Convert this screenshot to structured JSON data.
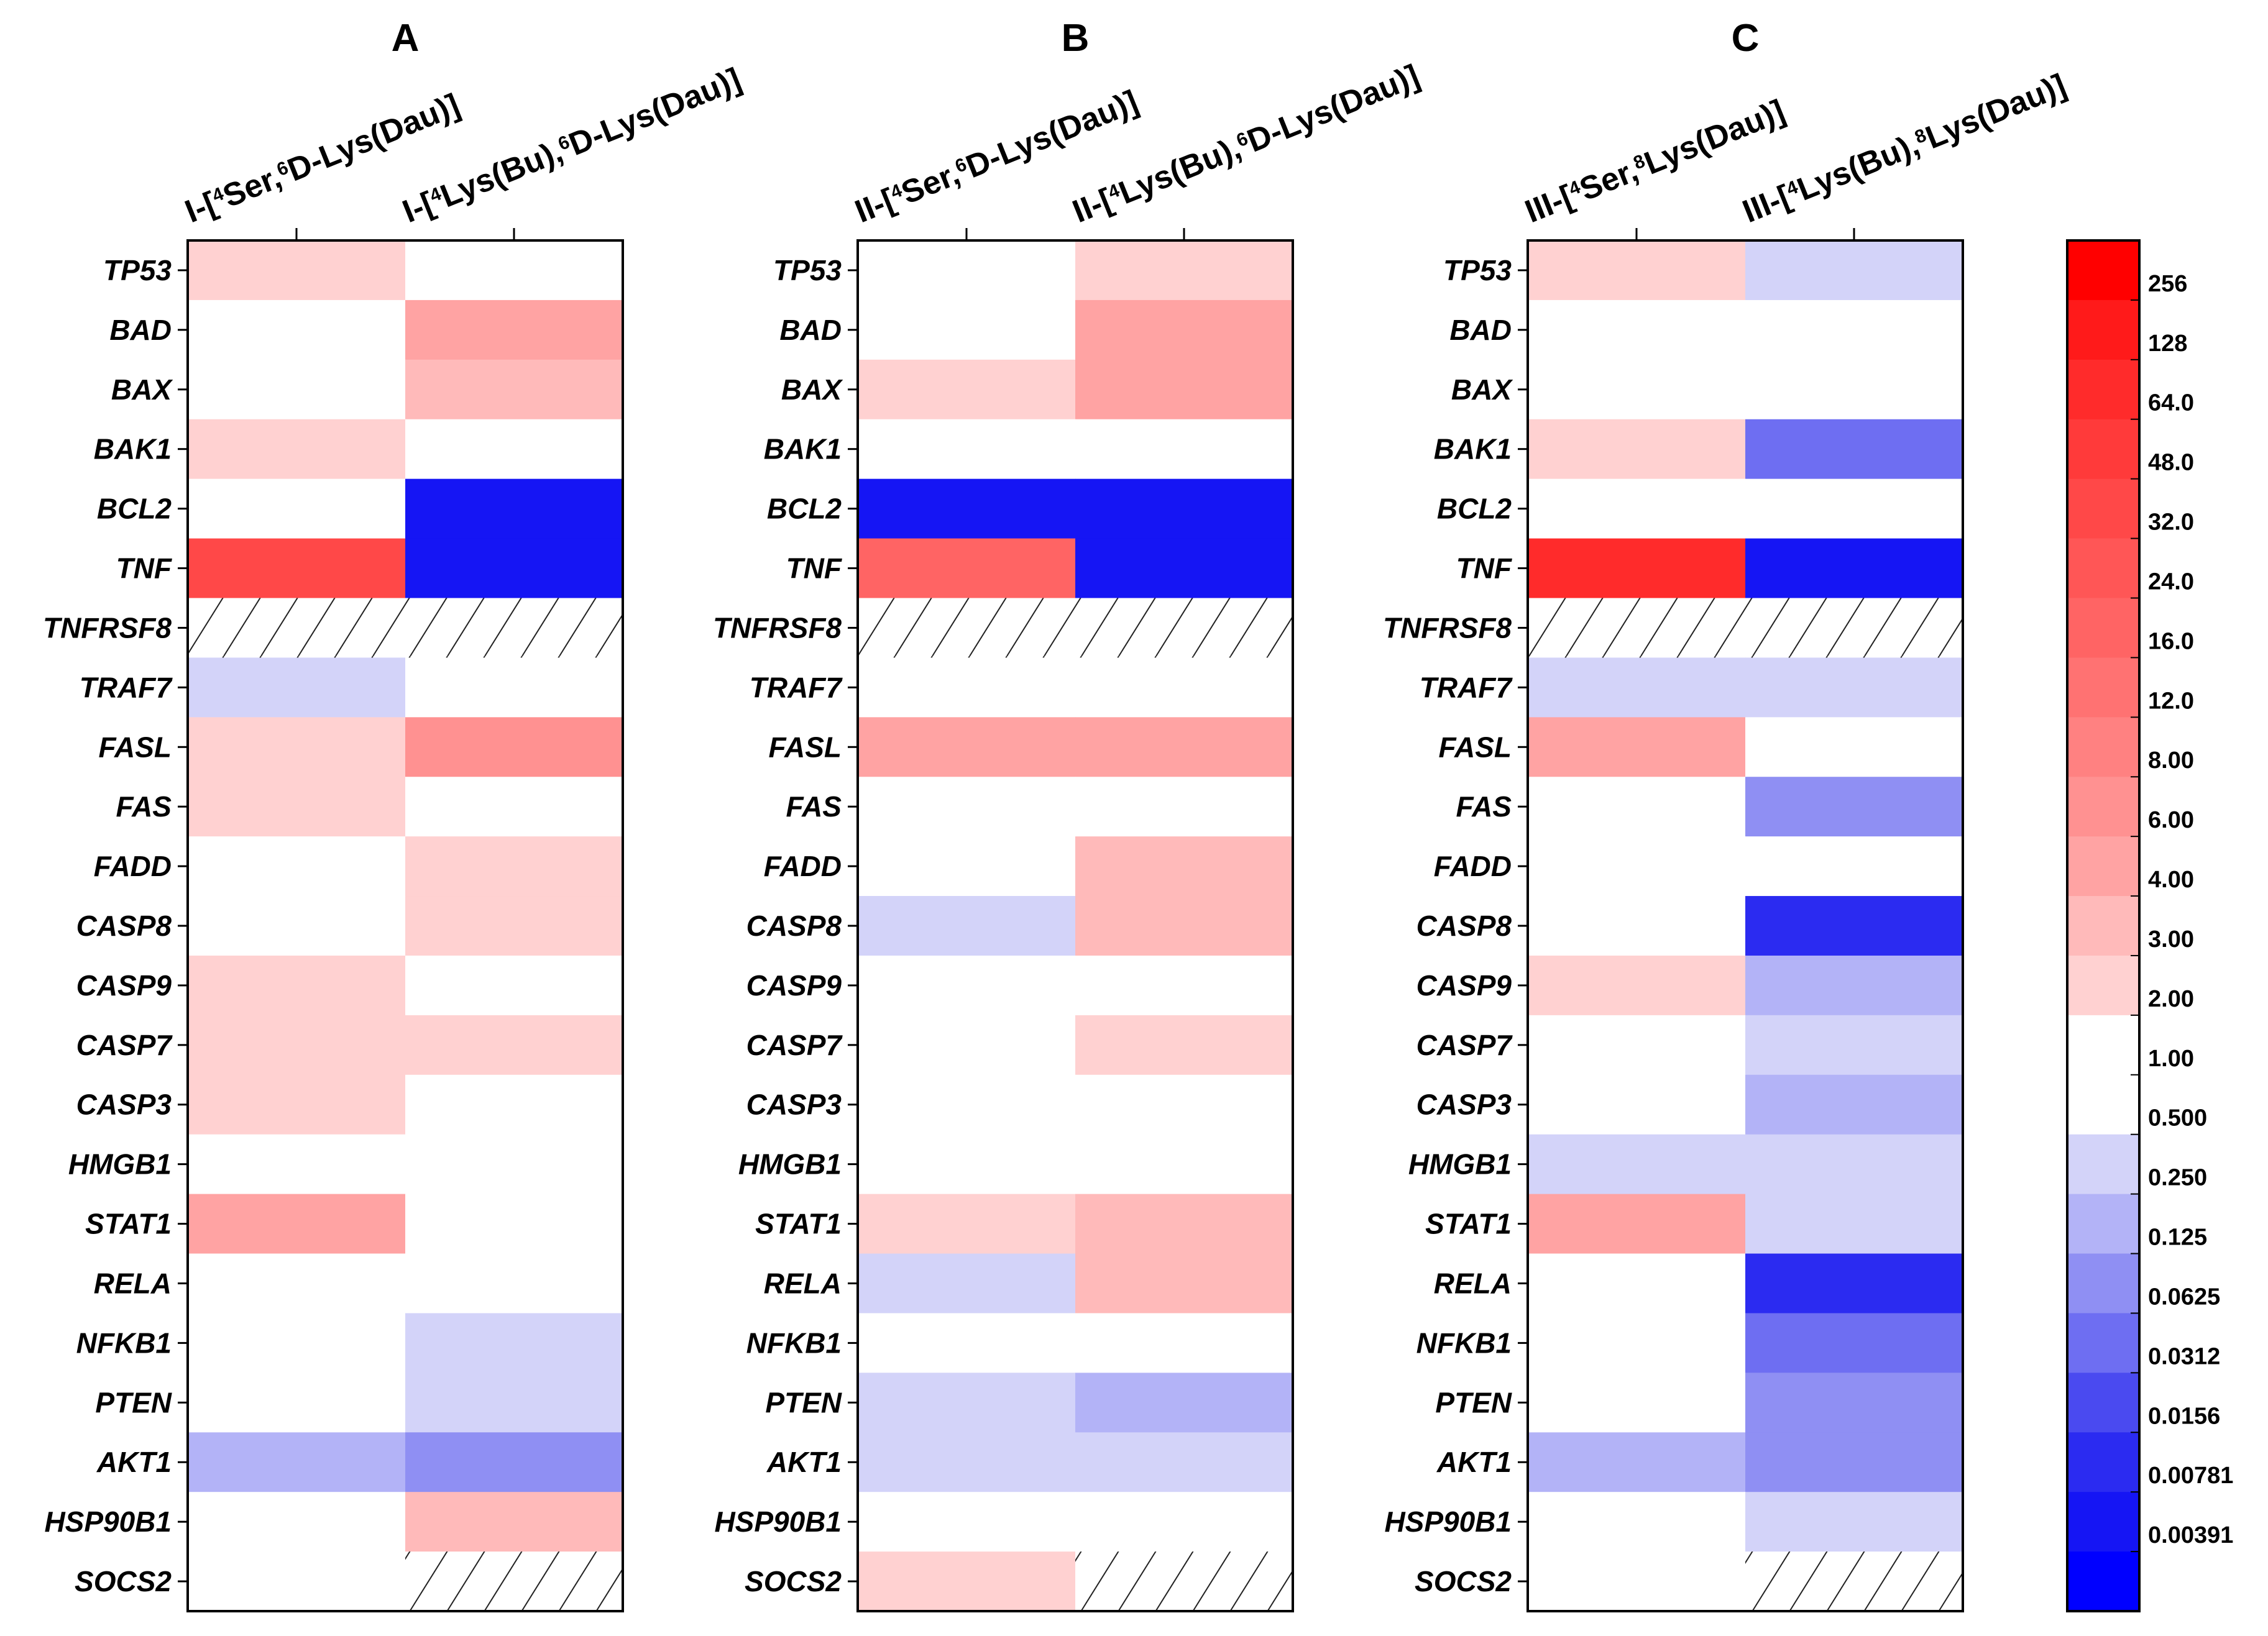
{
  "chart_data": {
    "type": "heatmap",
    "genes": [
      "TP53",
      "BAD",
      "BAX",
      "BAK1",
      "BCL2",
      "TNF",
      "TNFRSF8",
      "TRAF7",
      "FASL",
      "FAS",
      "FADD",
      "CASP8",
      "CASP9",
      "CASP7",
      "CASP3",
      "HMGB1",
      "STAT1",
      "RELA",
      "NFKB1",
      "PTEN",
      "AKT1",
      "HSP90B1",
      "SOCS2"
    ],
    "panels": [
      {
        "label": "A",
        "columns": [
          {
            "prefix": "I-[",
            "sup1": "4",
            "mid": "Ser,",
            "sup2": "6",
            "suffix": "D-Lys(Dau)]"
          },
          {
            "prefix": "I-[",
            "sup1": "4",
            "mid": "Lys(Bu),",
            "sup2": "6",
            "suffix": "D-Lys(Dau)]"
          }
        ],
        "values": [
          [
            2.5,
            1
          ],
          [
            1,
            5
          ],
          [
            1,
            3
          ],
          [
            2.5,
            1
          ],
          [
            1,
            0.004
          ],
          [
            40,
            0.004
          ],
          [
            null,
            null
          ],
          [
            0.3,
            1
          ],
          [
            2.5,
            7
          ],
          [
            2.5,
            1
          ],
          [
            1,
            2.5
          ],
          [
            1,
            2.5
          ],
          [
            2.5,
            1
          ],
          [
            2.5,
            2.5
          ],
          [
            2.5,
            1
          ],
          [
            1,
            1
          ],
          [
            4,
            1
          ],
          [
            1,
            1
          ],
          [
            1,
            0.3
          ],
          [
            1,
            0.3
          ],
          [
            0.15,
            0.1
          ],
          [
            1,
            3
          ],
          [
            1,
            null
          ]
        ]
      },
      {
        "label": "B",
        "columns": [
          {
            "prefix": "II-[",
            "sup1": "4",
            "mid": "Ser,",
            "sup2": "6",
            "suffix": "D-Lys(Dau)]"
          },
          {
            "prefix": "II-[",
            "sup1": "4",
            "mid": "Lys(Bu),",
            "sup2": "6",
            "suffix": "D-Lys(Dau)]"
          }
        ],
        "values": [
          [
            1,
            2.5
          ],
          [
            1,
            5
          ],
          [
            2.5,
            4
          ],
          [
            1,
            1
          ],
          [
            0.004,
            0.004
          ],
          [
            20,
            0.004
          ],
          [
            null,
            null
          ],
          [
            1,
            1
          ],
          [
            4,
            4
          ],
          [
            1,
            1
          ],
          [
            1,
            3
          ],
          [
            0.3,
            3
          ],
          [
            1,
            1
          ],
          [
            1,
            2.5
          ],
          [
            1,
            1
          ],
          [
            1,
            1
          ],
          [
            2.5,
            3
          ],
          [
            0.3,
            3
          ],
          [
            1,
            1
          ],
          [
            0.3,
            0.15
          ],
          [
            0.3,
            0.3
          ],
          [
            1,
            1
          ],
          [
            2.5,
            null
          ]
        ]
      },
      {
        "label": "C",
        "columns": [
          {
            "prefix": "III-[",
            "sup1": "4",
            "mid": "Ser,",
            "sup2": "8",
            "suffix": "Lys(Dau)]"
          },
          {
            "prefix": "III-[",
            "sup1": "4",
            "mid": "Lys(Bu),",
            "sup2": "8",
            "suffix": "Lys(Dau)]"
          }
        ],
        "values": [
          [
            2.5,
            0.3
          ],
          [
            1,
            1
          ],
          [
            1,
            1
          ],
          [
            2.5,
            0.04
          ],
          [
            1,
            1
          ],
          [
            64,
            0.004
          ],
          [
            null,
            null
          ],
          [
            0.3,
            0.3
          ],
          [
            4,
            1
          ],
          [
            1,
            0.08
          ],
          [
            1,
            1
          ],
          [
            1,
            0.008
          ],
          [
            2.5,
            0.15
          ],
          [
            1,
            0.3
          ],
          [
            1,
            0.15
          ],
          [
            0.3,
            0.3
          ],
          [
            4,
            0.3
          ],
          [
            1,
            0.008
          ],
          [
            1,
            0.04
          ],
          [
            1,
            0.08
          ],
          [
            0.15,
            0.08
          ],
          [
            1,
            0.3
          ],
          [
            1,
            null
          ]
        ]
      }
    ],
    "colorbar": {
      "labels": [
        "256",
        "128",
        "64.0",
        "48.0",
        "32.0",
        "24.0",
        "16.0",
        "12.0",
        "8.00",
        "6.00",
        "4.00",
        "3.00",
        "2.00",
        "1.00",
        "0.500",
        "0.250",
        "0.125",
        "0.0625",
        "0.0312",
        "0.0156",
        "0.00781",
        "0.00391"
      ],
      "thresholds": [
        256,
        128,
        64,
        48,
        32,
        24,
        16,
        12,
        8,
        6,
        4,
        3,
        2,
        1,
        0.5,
        0.25,
        0.125,
        0.0625,
        0.0312,
        0.0156,
        0.00781,
        0.00391
      ],
      "colors": [
        "#ff0000",
        "#ff1a1a",
        "#ff2b2b",
        "#ff3a3a",
        "#ff4848",
        "#ff5656",
        "#ff6464",
        "#ff7272",
        "#ff8181",
        "#ff9191",
        "#ffa3a3",
        "#ffbaba",
        "#ffd1d1",
        "#ffffff",
        "#ffffff",
        "#d3d3f9",
        "#b3b3f7",
        "#8f8ff3",
        "#6e6ef2",
        "#4a4af0",
        "#2b2bf1",
        "#1515f4",
        "#0000ff"
      ]
    },
    "missing_pattern": "hatched"
  }
}
